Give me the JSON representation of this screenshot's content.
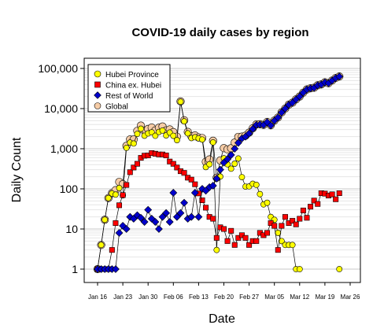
{
  "chart_data": {
    "type": "scatter",
    "title": "COVID-19 daily cases by region",
    "xlabel": "Date",
    "ylabel": "Daily Count",
    "yscale": "log",
    "ylim": [
      1,
      100000
    ],
    "xlim": [
      "2020-01-13",
      "2020-03-28"
    ],
    "grid": true,
    "legend_position": "top-left",
    "y_ticks": [
      "1",
      "10",
      "100",
      "1,000",
      "10,000",
      "100,000"
    ],
    "x_ticks": [
      "Jan 16",
      "Jan 23",
      "Jan 30",
      "Feb 06",
      "Feb 13",
      "Feb 20",
      "Feb 27",
      "Mar 05",
      "Mar 12",
      "Mar 19",
      "Mar 26"
    ],
    "series": [
      {
        "name": "Hubei Province",
        "color": "#ffff00",
        "marker": "circle",
        "start": "2020-01-16",
        "values": [
          1,
          4,
          17,
          59,
          77,
          72,
          105,
          69,
          1052,
          1423,
          1347,
          2345,
          3156,
          2109,
          2409,
          2567,
          2103,
          2618,
          2841,
          2147,
          2531,
          2097,
          1638,
          14840,
          4823,
          2420,
          1843,
          1933,
          1807,
          1693,
          349,
          411,
          1441,
          3,
          202,
          577,
          409,
          318,
          423,
          570,
          196,
          114,
          115,
          134,
          126,
          74,
          41,
          45,
          20,
          17,
          8,
          5,
          4,
          4,
          4,
          1,
          1,
          null,
          null,
          null,
          null,
          null,
          null,
          null,
          null,
          null,
          null,
          1
        ]
      },
      {
        "name": "China ex. Hubei",
        "color": "#ff0000",
        "marker": "square",
        "start": "2020-01-16",
        "values": [
          1,
          1,
          1,
          1,
          3,
          14,
          39,
          70,
          125,
          260,
          340,
          421,
          592,
          670,
          680,
          780,
          750,
          720,
          720,
          680,
          480,
          420,
          340,
          275,
          250,
          190,
          170,
          130,
          77,
          52,
          34,
          20,
          18,
          6,
          11,
          10,
          5,
          9,
          4,
          6,
          7,
          6,
          4,
          5,
          5,
          8,
          7,
          8,
          14,
          12,
          3,
          12,
          20,
          14,
          16,
          13,
          18,
          29,
          19,
          36,
          51,
          42,
          78,
          76,
          68,
          73,
          55,
          78
        ]
      },
      {
        "name": "Rest of World",
        "color": "#0000cc",
        "marker": "diamond",
        "start": "2020-01-16",
        "values": [
          1,
          1,
          1,
          1,
          1,
          1,
          8,
          12,
          10,
          20,
          18,
          22,
          19,
          15,
          30,
          18,
          15,
          10,
          20,
          25,
          15,
          80,
          20,
          25,
          45,
          18,
          20,
          80,
          20,
          100,
          90,
          110,
          120,
          180,
          300,
          450,
          550,
          700,
          1000,
          1400,
          1800,
          2000,
          2400,
          3100,
          3900,
          4000,
          3900,
          4600,
          3800,
          5000,
          6000,
          8000,
          10000,
          12500,
          14000,
          17000,
          20000,
          25000,
          30000,
          32000,
          33000,
          38000,
          40000,
          45000,
          43000,
          50000,
          58000,
          63000
        ]
      },
      {
        "name": "Global",
        "color": "#f6cca6",
        "marker": "circle",
        "start": "2020-01-16",
        "values": [
          1,
          4,
          17,
          59,
          78,
          93,
          149,
          131,
          1177,
          1703,
          1698,
          2786,
          3767,
          2809,
          3109,
          3367,
          2863,
          3348,
          3581,
          2852,
          3026,
          2597,
          1998,
          15140,
          5118,
          2628,
          2033,
          2143,
          1904,
          1845,
          473,
          541,
          1579,
          189,
          511,
          1037,
          964,
          1027,
          1427,
          1976,
          2003,
          2120,
          2519,
          3239,
          4031,
          4082,
          3948,
          4653,
          3842,
          5029,
          6004,
          8017,
          10024,
          12518,
          14020,
          17013,
          20018,
          25029,
          30019,
          32036,
          33051,
          38042,
          40078,
          45076,
          43068,
          50073,
          58055,
          63078
        ]
      }
    ]
  }
}
